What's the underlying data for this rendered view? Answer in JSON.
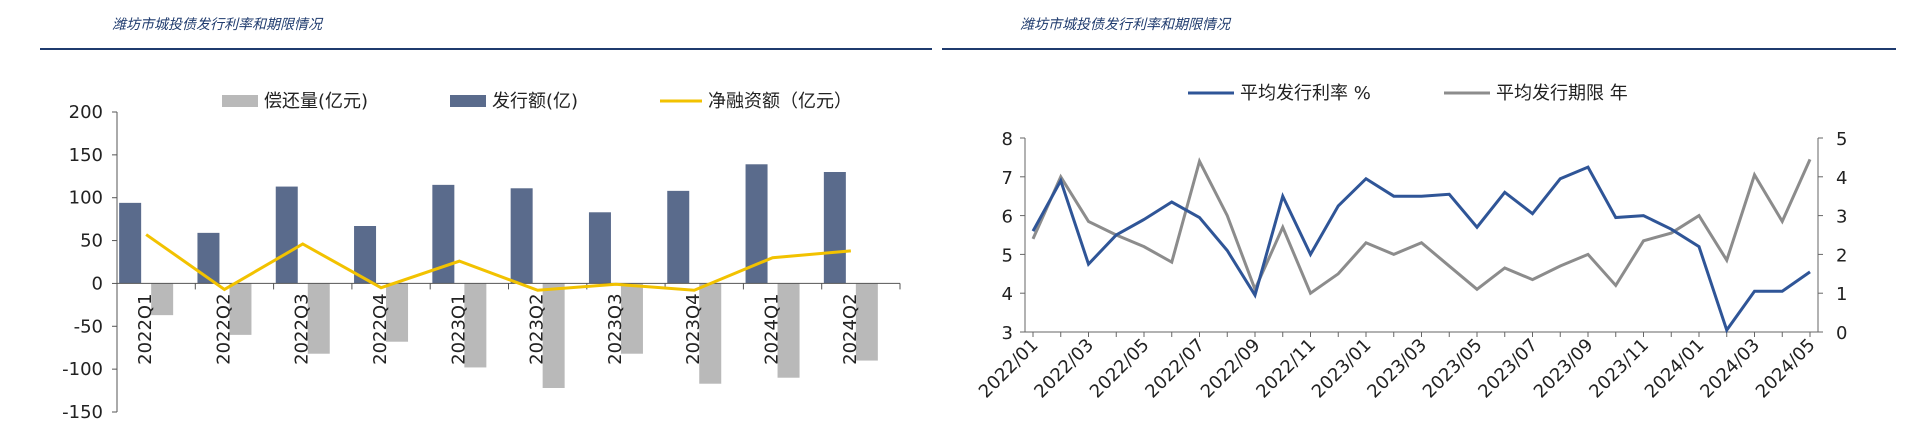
{
  "titles": {
    "left": "潍坊市城投债发行利率和期限情况",
    "right": "潍坊市城投债发行利率和期限情况"
  },
  "colors": {
    "repay": "#b9b9b9",
    "issue": "#5a6b8c",
    "net": "#f2c200",
    "rate": "#2f5597",
    "term": "#8c8c8c",
    "rule": "#1f3b6e"
  },
  "chart_data": [
    {
      "type": "bar",
      "legend": [
        "偿还量(亿元)",
        "发行额(亿)",
        "净融资额（亿元）"
      ],
      "categories": [
        "2022Q1",
        "2022Q2",
        "2022Q3",
        "2022Q4",
        "2023Q1",
        "2023Q2",
        "2023Q3",
        "2023Q4",
        "2024Q1",
        "2024Q2"
      ],
      "series": [
        {
          "name": "偿还量(亿元)",
          "kind": "bar",
          "values": [
            -37,
            -60,
            -82,
            -68,
            -98,
            -122,
            -82,
            -117,
            -110,
            -90
          ]
        },
        {
          "name": "发行额(亿)",
          "kind": "bar",
          "values": [
            94,
            59,
            113,
            67,
            115,
            111,
            83,
            108,
            139,
            130
          ]
        },
        {
          "name": "净融资额（亿元）",
          "kind": "line",
          "values": [
            57,
            -7,
            46,
            -5,
            26,
            -8,
            -1,
            -8,
            30,
            38
          ]
        }
      ],
      "ylim": [
        -150,
        200
      ],
      "yticks": [
        200,
        150,
        100,
        50,
        0,
        -50,
        -100,
        -150
      ],
      "yticklabels": [
        "200",
        "150",
        "100",
        "50",
        "0",
        "-50",
        "-100",
        "-150"
      ]
    },
    {
      "type": "line",
      "legend": [
        "平均发行利率 %",
        "平均发行期限 年"
      ],
      "x": [
        "2022/01",
        "2022/02",
        "2022/03",
        "2022/04",
        "2022/05",
        "2022/06",
        "2022/07",
        "2022/08",
        "2022/09",
        "2022/10",
        "2022/11",
        "2022/12",
        "2023/01",
        "2023/02",
        "2023/03",
        "2023/04",
        "2023/05",
        "2023/06",
        "2023/07",
        "2023/08",
        "2023/09",
        "2023/10",
        "2023/11",
        "2023/12",
        "2024/01",
        "2024/02",
        "2024/03",
        "2024/04",
        "2024/05"
      ],
      "xticklabels": [
        "2022/01",
        "2022/03",
        "2022/05",
        "2022/07",
        "2022/09",
        "2022/11",
        "2023/01",
        "2023/03",
        "2023/05",
        "2023/07",
        "2023/09",
        "2023/11",
        "2024/01",
        "2024/03",
        "2024/05"
      ],
      "series": [
        {
          "name": "平均发行利率 %",
          "axis": "left",
          "values": [
            5.6,
            6.9,
            4.75,
            5.5,
            5.9,
            6.35,
            5.95,
            5.1,
            3.95,
            6.5,
            5.0,
            6.25,
            6.95,
            6.5,
            6.5,
            6.55,
            5.7,
            6.6,
            6.05,
            6.95,
            7.25,
            5.95,
            6.0,
            5.65,
            5.2,
            3.05,
            4.05,
            4.05,
            4.55
          ]
        },
        {
          "name": "平均发行期限 年",
          "axis": "right",
          "values": [
            2.4,
            4.0,
            2.85,
            2.5,
            2.2,
            1.8,
            4.4,
            3.0,
            1.1,
            2.7,
            1.0,
            1.5,
            2.3,
            2.0,
            2.3,
            1.7,
            1.1,
            1.65,
            1.35,
            1.7,
            2.0,
            1.2,
            2.35,
            2.55,
            3.0,
            1.85,
            4.05,
            2.85,
            4.45
          ]
        }
      ],
      "ylim_left": [
        3,
        8
      ],
      "yticks_left": [
        "8",
        "7",
        "6",
        "5",
        "4",
        "3"
      ],
      "ylim_right": [
        0,
        5
      ],
      "yticks_right": [
        "5",
        "4",
        "3",
        "2",
        "1",
        "0"
      ]
    }
  ]
}
